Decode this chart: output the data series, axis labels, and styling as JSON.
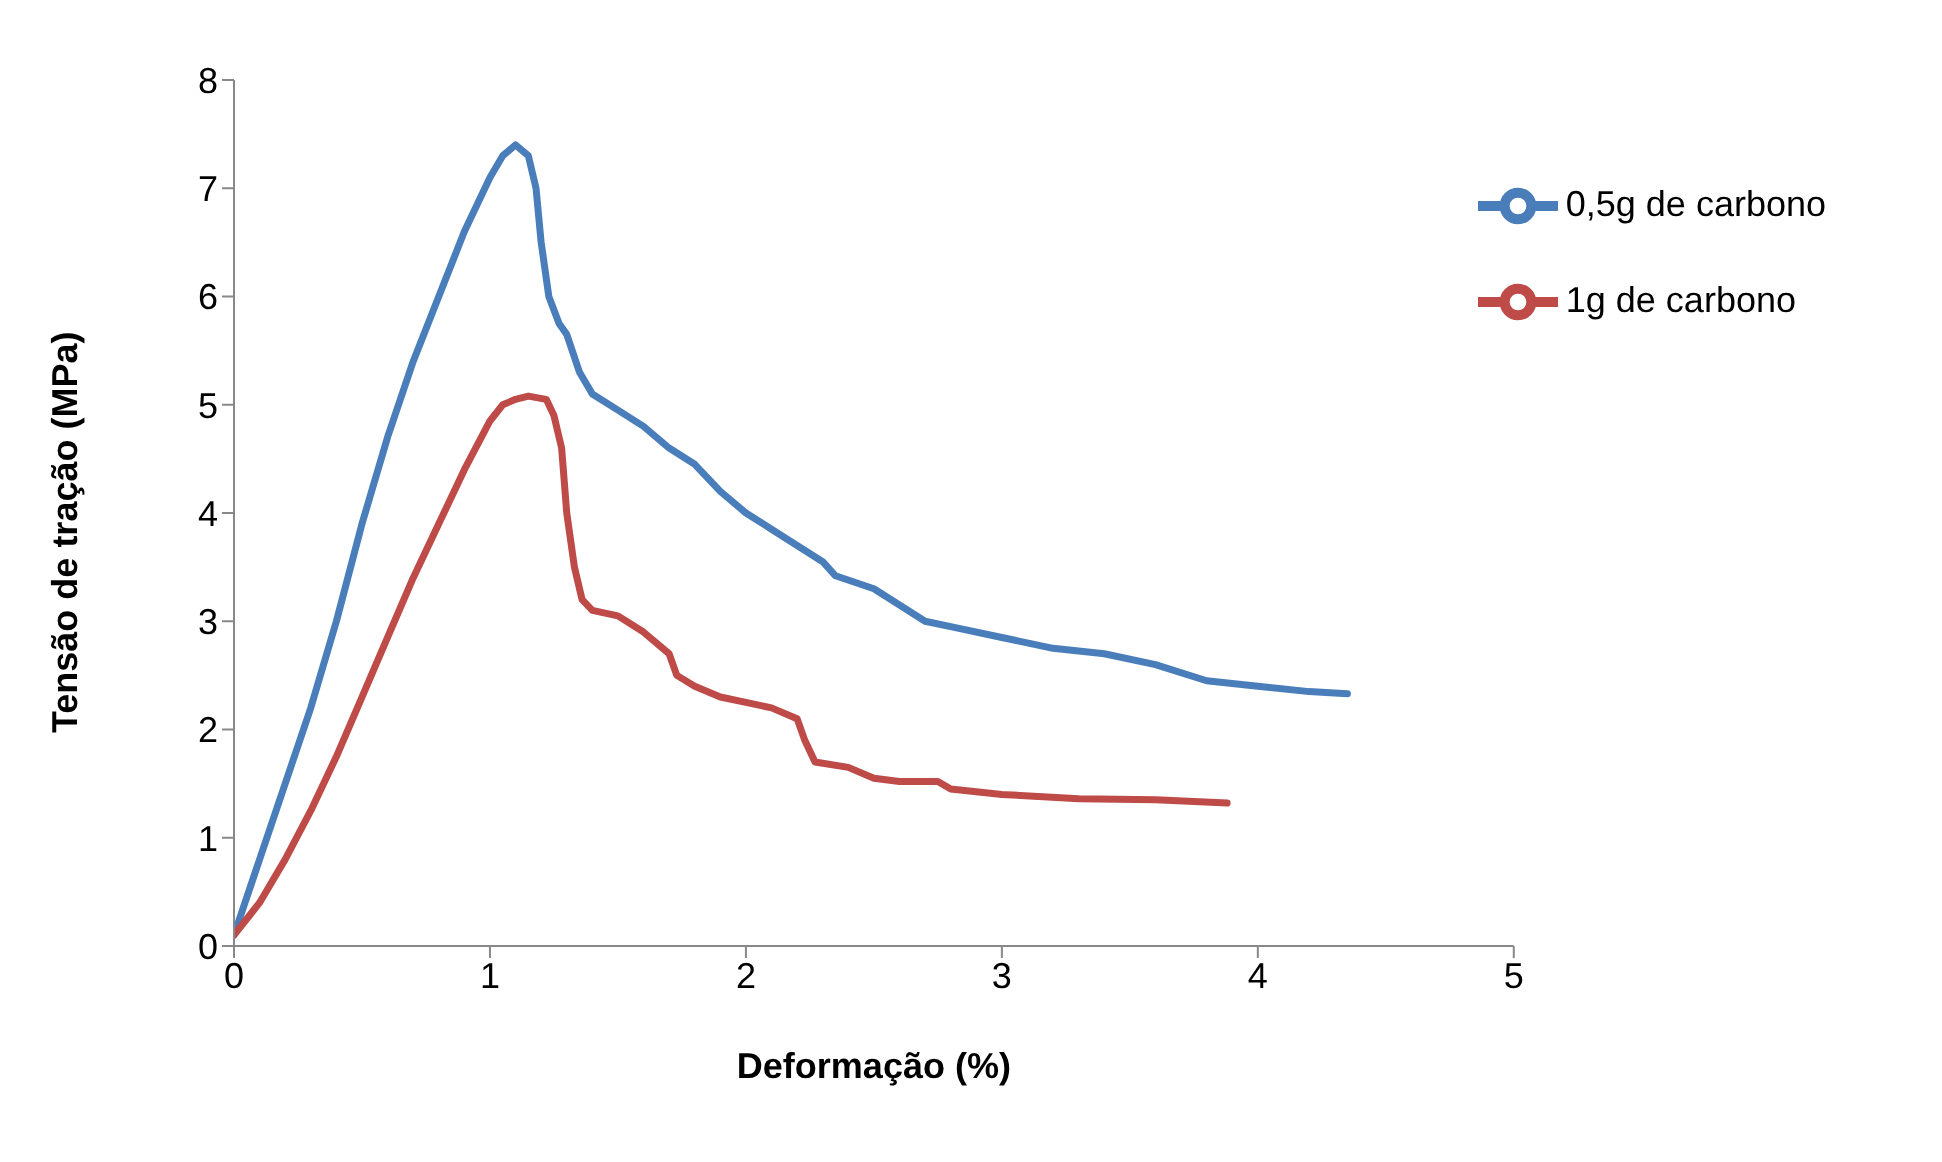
{
  "chart_data": {
    "type": "line",
    "xlabel": "Deformação (%)",
    "ylabel": "Tensão de tração (MPa)",
    "xlim": [
      0,
      5
    ],
    "xticks": [
      0,
      1,
      2,
      3,
      4,
      5
    ],
    "ylim": [
      0,
      8
    ],
    "yticks": [
      0,
      1,
      2,
      3,
      4,
      5,
      6,
      7,
      8
    ],
    "grid": false,
    "legend": "top right",
    "marker": "none",
    "line_style": "solid",
    "series": [
      {
        "name": "0,5g de carbono",
        "color": "#4a7ebb",
        "x": [
          0,
          0.1,
          0.2,
          0.3,
          0.4,
          0.5,
          0.6,
          0.7,
          0.8,
          0.9,
          1.0,
          1.05,
          1.1,
          1.15,
          1.18,
          1.2,
          1.23,
          1.27,
          1.3,
          1.35,
          1.4,
          1.5,
          1.6,
          1.7,
          1.8,
          1.9,
          2.0,
          2.1,
          2.2,
          2.3,
          2.35,
          2.5,
          2.6,
          2.7,
          2.8,
          3.0,
          3.2,
          3.4,
          3.6,
          3.8,
          4.0,
          4.2,
          4.35
        ],
        "values": [
          0.1,
          0.8,
          1.5,
          2.2,
          3.0,
          3.9,
          4.7,
          5.4,
          6.0,
          6.6,
          7.1,
          7.3,
          7.4,
          7.3,
          7.0,
          6.5,
          6.0,
          5.75,
          5.65,
          5.3,
          5.1,
          4.95,
          4.8,
          4.6,
          4.45,
          4.2,
          4.0,
          3.85,
          3.7,
          3.55,
          3.42,
          3.3,
          3.15,
          3.0,
          2.95,
          2.85,
          2.75,
          2.7,
          2.6,
          2.45,
          2.4,
          2.35,
          2.33
        ]
      },
      {
        "name": "1g de carbono",
        "color": "#be4b48",
        "x": [
          0,
          0.1,
          0.2,
          0.3,
          0.4,
          0.5,
          0.6,
          0.7,
          0.8,
          0.9,
          1.0,
          1.05,
          1.1,
          1.15,
          1.22,
          1.25,
          1.28,
          1.3,
          1.33,
          1.36,
          1.4,
          1.5,
          1.6,
          1.7,
          1.73,
          1.8,
          1.9,
          2.0,
          2.1,
          2.2,
          2.23,
          2.27,
          2.4,
          2.5,
          2.6,
          2.75,
          2.8,
          3.0,
          3.3,
          3.6,
          3.88
        ],
        "values": [
          0.1,
          0.4,
          0.8,
          1.25,
          1.75,
          2.3,
          2.85,
          3.4,
          3.9,
          4.4,
          4.85,
          5.0,
          5.05,
          5.08,
          5.05,
          4.9,
          4.6,
          4.0,
          3.5,
          3.2,
          3.1,
          3.05,
          2.9,
          2.7,
          2.5,
          2.4,
          2.3,
          2.25,
          2.2,
          2.1,
          1.9,
          1.7,
          1.65,
          1.55,
          1.52,
          1.52,
          1.45,
          1.4,
          1.36,
          1.35,
          1.32
        ]
      }
    ]
  }
}
